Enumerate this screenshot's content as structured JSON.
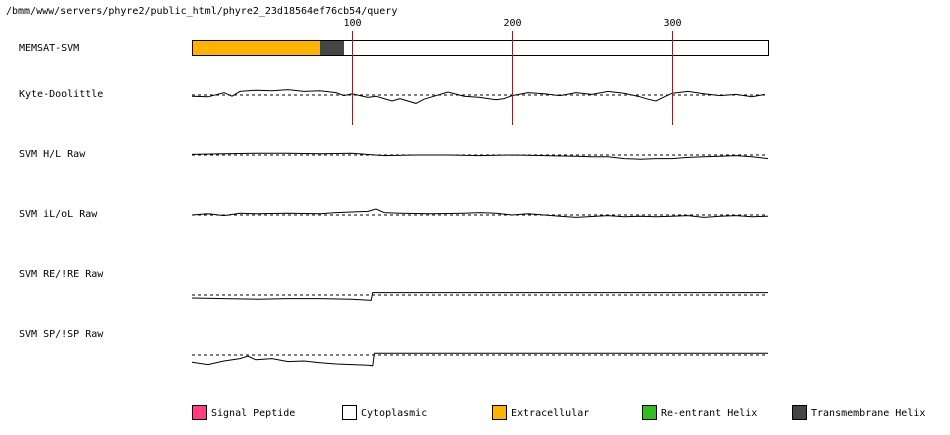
{
  "query_path": "/bmm/www/servers/phyre2/public_html/phyre2_23d18564ef76cb54/query",
  "chart_data": {
    "type": "line",
    "sequence_length": 360,
    "xlim": [
      0,
      360
    ],
    "ticks": [
      {
        "value": 100,
        "label": "100"
      },
      {
        "value": 200,
        "label": "200"
      },
      {
        "value": 300,
        "label": "300"
      }
    ],
    "memsat": {
      "label": "MEMSAT-SVM",
      "segments": [
        {
          "start": 0,
          "end": 80,
          "kind": "Extracellular",
          "color": "#ffb300"
        },
        {
          "start": 80,
          "end": 95,
          "kind": "Transmembrane Helix",
          "color": "#454545"
        },
        {
          "start": 95,
          "end": 360,
          "kind": "Cytoplasmic",
          "color": "#ffffff"
        }
      ]
    },
    "tracks": [
      {
        "label": "Kyte-Doolittle",
        "points": [
          [
            0,
            0.2
          ],
          [
            10,
            0.3
          ],
          [
            20,
            -0.4
          ],
          [
            25,
            0.2
          ],
          [
            30,
            -0.6
          ],
          [
            40,
            -0.8
          ],
          [
            50,
            -0.7
          ],
          [
            60,
            -0.9
          ],
          [
            70,
            -0.6
          ],
          [
            80,
            -0.7
          ],
          [
            90,
            -0.4
          ],
          [
            95,
            0.1
          ],
          [
            100,
            -0.2
          ],
          [
            110,
            0.4
          ],
          [
            115,
            0.2
          ],
          [
            120,
            0.6
          ],
          [
            125,
            1.0
          ],
          [
            130,
            0.6
          ],
          [
            140,
            1.4
          ],
          [
            145,
            0.7
          ],
          [
            150,
            0.3
          ],
          [
            160,
            -0.5
          ],
          [
            170,
            0.2
          ],
          [
            180,
            0.4
          ],
          [
            190,
            0.8
          ],
          [
            195,
            0.6
          ],
          [
            200,
            0.1
          ],
          [
            210,
            -0.4
          ],
          [
            220,
            -0.2
          ],
          [
            230,
            0.1
          ],
          [
            240,
            -0.4
          ],
          [
            250,
            -0.1
          ],
          [
            260,
            -0.6
          ],
          [
            270,
            -0.3
          ],
          [
            280,
            0.3
          ],
          [
            285,
            0.7
          ],
          [
            290,
            1.0
          ],
          [
            293,
            0.6
          ],
          [
            300,
            -0.3
          ],
          [
            310,
            -0.6
          ],
          [
            320,
            -0.2
          ],
          [
            330,
            0.1
          ],
          [
            340,
            -0.1
          ],
          [
            350,
            0.3
          ],
          [
            358,
            -0.1
          ]
        ]
      },
      {
        "label": "SVM H/L Raw",
        "points": [
          [
            0,
            -0.1
          ],
          [
            20,
            -0.2
          ],
          [
            40,
            -0.3
          ],
          [
            60,
            -0.3
          ],
          [
            80,
            -0.2
          ],
          [
            100,
            -0.3
          ],
          [
            120,
            0.1
          ],
          [
            140,
            0.0
          ],
          [
            160,
            0.0
          ],
          [
            180,
            0.1
          ],
          [
            200,
            0.0
          ],
          [
            220,
            0.1
          ],
          [
            240,
            0.2
          ],
          [
            250,
            0.3
          ],
          [
            260,
            0.3
          ],
          [
            270,
            0.6
          ],
          [
            280,
            0.7
          ],
          [
            290,
            0.6
          ],
          [
            300,
            0.6
          ],
          [
            310,
            0.4
          ],
          [
            320,
            0.3
          ],
          [
            330,
            0.2
          ],
          [
            340,
            0.1
          ],
          [
            350,
            0.3
          ],
          [
            360,
            0.6
          ]
        ]
      },
      {
        "label": "SVM iL/oL Raw",
        "points": [
          [
            0,
            0.0
          ],
          [
            10,
            -0.2
          ],
          [
            20,
            0.1
          ],
          [
            30,
            -0.3
          ],
          [
            40,
            -0.2
          ],
          [
            60,
            -0.3
          ],
          [
            80,
            -0.2
          ],
          [
            90,
            -0.4
          ],
          [
            100,
            -0.5
          ],
          [
            110,
            -0.6
          ],
          [
            115,
            -1.0
          ],
          [
            120,
            -0.4
          ],
          [
            130,
            -0.3
          ],
          [
            150,
            -0.2
          ],
          [
            170,
            -0.3
          ],
          [
            180,
            -0.4
          ],
          [
            190,
            -0.3
          ],
          [
            200,
            0.0
          ],
          [
            210,
            -0.2
          ],
          [
            220,
            0.0
          ],
          [
            230,
            0.2
          ],
          [
            240,
            0.4
          ],
          [
            260,
            0.1
          ],
          [
            270,
            0.3
          ],
          [
            280,
            0.2
          ],
          [
            290,
            0.3
          ],
          [
            300,
            0.2
          ],
          [
            310,
            0.1
          ],
          [
            320,
            0.4
          ],
          [
            330,
            0.2
          ],
          [
            340,
            0.1
          ],
          [
            350,
            0.3
          ],
          [
            360,
            0.2
          ]
        ]
      },
      {
        "label": "SVM RE/!RE Raw",
        "points": [
          [
            0,
            0.5
          ],
          [
            20,
            0.6
          ],
          [
            40,
            0.7
          ],
          [
            60,
            0.6
          ],
          [
            80,
            0.6
          ],
          [
            100,
            0.7
          ],
          [
            112,
            0.9
          ],
          [
            113,
            -0.4
          ],
          [
            360,
            -0.4
          ]
        ]
      },
      {
        "label": "SVM SP/!SP Raw",
        "points": [
          [
            0,
            1.2
          ],
          [
            10,
            1.6
          ],
          [
            20,
            1.0
          ],
          [
            30,
            0.6
          ],
          [
            35,
            0.2
          ],
          [
            40,
            0.8
          ],
          [
            50,
            0.6
          ],
          [
            60,
            1.1
          ],
          [
            70,
            1.0
          ],
          [
            80,
            1.3
          ],
          [
            90,
            1.5
          ],
          [
            100,
            1.6
          ],
          [
            110,
            1.7
          ],
          [
            113,
            1.8
          ],
          [
            114,
            -0.3
          ],
          [
            360,
            -0.3
          ]
        ]
      }
    ],
    "legend": [
      {
        "label": "Signal Peptide",
        "color": "#ff3d7f"
      },
      {
        "label": "Cytoplasmic",
        "color": "#ffffff"
      },
      {
        "label": "Extracellular",
        "color": "#ffb300"
      },
      {
        "label": "Re-entrant Helix",
        "color": "#33bb22"
      },
      {
        "label": "Transmembrane Helix",
        "color": "#454545"
      }
    ]
  }
}
